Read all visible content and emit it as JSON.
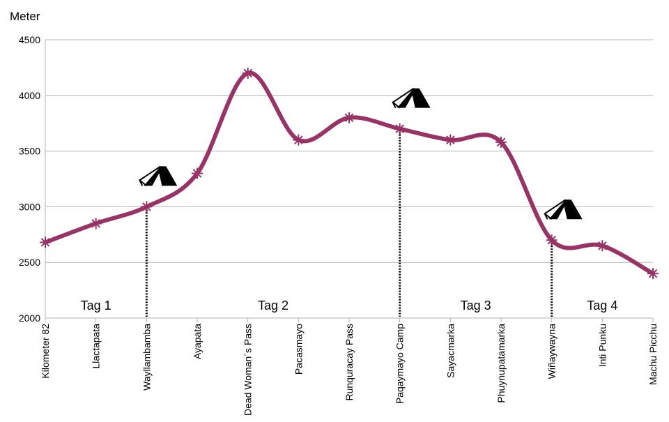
{
  "chart_data": {
    "type": "line",
    "title": "",
    "xlabel": "",
    "ylabel": "Meter",
    "ylim": [
      2000,
      4500
    ],
    "yticks": [
      2000,
      2500,
      3000,
      3500,
      4000,
      4500
    ],
    "grid": "horizontal",
    "legend": "none",
    "categories": [
      "Kilometer 82",
      "Llactapata",
      "Wayllambamba",
      "Ayapata",
      "Dead Woman´s Pass",
      "Pacasmayo",
      "Runquracay Pass",
      "Paqaymayo Camp",
      "Sayacmarka",
      "Phuynupatamarka",
      "Wiñaywayna",
      "Inti Punku",
      "Machu Picchu"
    ],
    "series": [
      {
        "values": [
          2680,
          2850,
          3000,
          3300,
          4200,
          3600,
          3800,
          3700,
          3600,
          3580,
          2700,
          2650,
          2400
        ]
      }
    ],
    "line_color": "#993366",
    "camp_markers": [
      {
        "category": "Wayllambamba",
        "icon": "tent-icon"
      },
      {
        "category": "Paqaymayo Camp",
        "icon": "tent-icon"
      },
      {
        "category": "Wiñaywayna",
        "icon": "tent-icon"
      }
    ],
    "day_labels": [
      {
        "text": "Tag 1",
        "between": [
          "Kilometer 82",
          "Wayllambamba"
        ]
      },
      {
        "text": "Tag 2",
        "between": [
          "Wayllambamba",
          "Paqaymayo Camp"
        ]
      },
      {
        "text": "Tag 3",
        "between": [
          "Paqaymayo Camp",
          "Wiñaywayna"
        ]
      },
      {
        "text": "Tag 4",
        "between": [
          "Wiñaywayna",
          "Machu Picchu"
        ]
      }
    ]
  }
}
